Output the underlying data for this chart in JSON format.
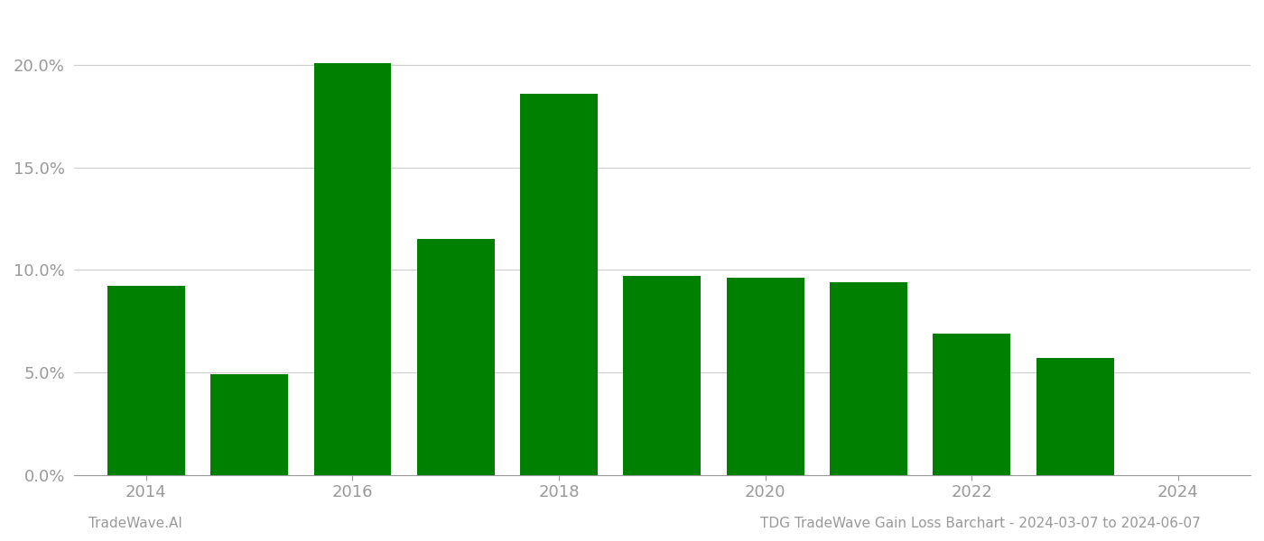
{
  "years": [
    2014,
    2015,
    2016,
    2017,
    2018,
    2019,
    2020,
    2021,
    2022,
    2023
  ],
  "values": [
    0.092,
    0.049,
    0.201,
    0.115,
    0.186,
    0.097,
    0.096,
    0.094,
    0.069,
    0.057
  ],
  "bar_color": "#008000",
  "background_color": "#ffffff",
  "grid_color": "#cccccc",
  "ylim": [
    0,
    0.225
  ],
  "yticks": [
    0.0,
    0.05,
    0.1,
    0.15,
    0.2
  ],
  "footer_left": "TradeWave.AI",
  "footer_right": "TDG TradeWave Gain Loss Barchart - 2024-03-07 to 2024-06-07",
  "footer_fontsize": 11,
  "tick_fontsize": 13,
  "axis_color": "#999999",
  "bar_width": 0.75,
  "xlim_left": 2013.3,
  "xlim_right": 2024.7
}
